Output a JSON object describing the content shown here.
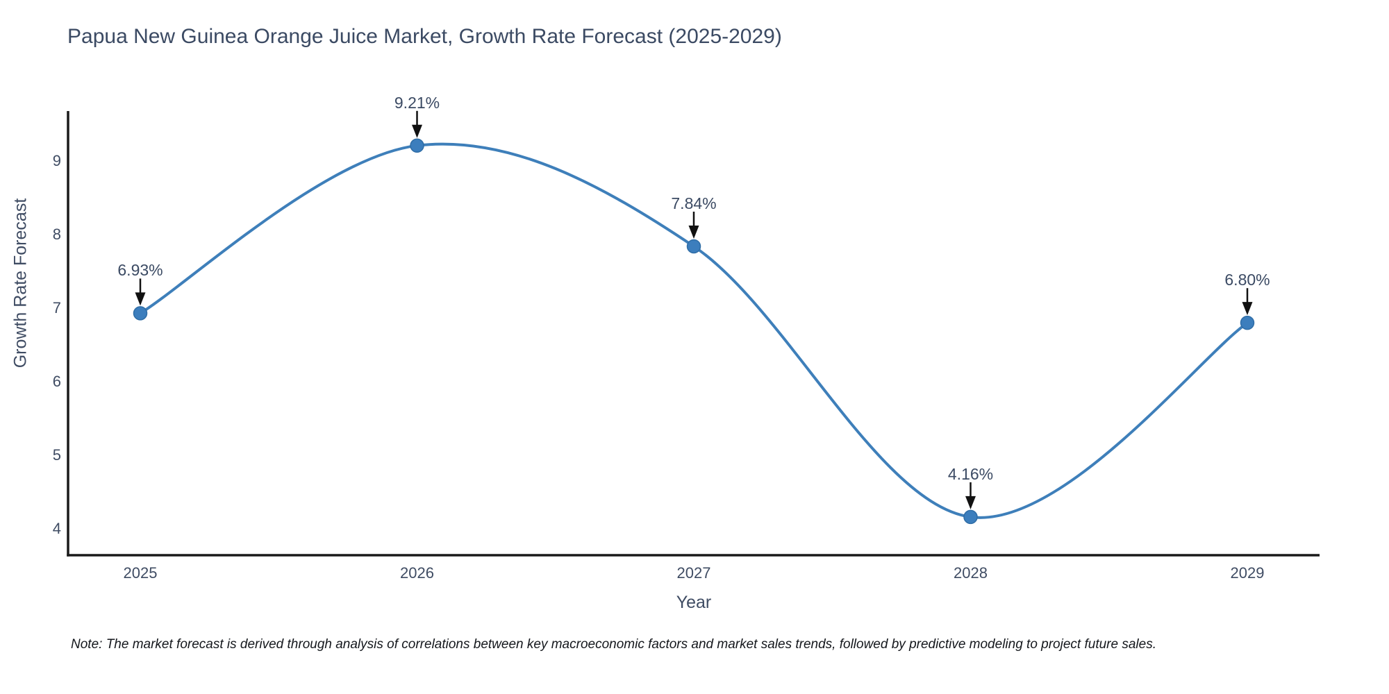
{
  "chart": {
    "title": "Papua New Guinea Orange Juice Market, Growth Rate Forecast (2025-2029)",
    "xlabel": "Year",
    "ylabel": "Growth Rate Forecast",
    "note": "Note: The market forecast is derived through analysis of correlations between key macroeconomic factors and market sales trends, followed by predictive modeling to project future sales."
  },
  "chart_data": {
    "type": "line",
    "title": "Papua New Guinea Orange Juice Market, Growth Rate Forecast (2025-2029)",
    "xlabel": "Year",
    "ylabel": "Growth Rate Forecast",
    "categories": [
      "2025",
      "2026",
      "2027",
      "2028",
      "2029"
    ],
    "values": [
      6.93,
      9.21,
      7.84,
      4.16,
      6.8
    ],
    "point_labels": [
      "6.93%",
      "9.21%",
      "7.84%",
      "4.16%",
      "6.80%"
    ],
    "yticks": [
      4,
      5,
      6,
      7,
      8,
      9
    ],
    "ylim": [
      3.64,
      9.68
    ],
    "grid": false,
    "legend": false,
    "curve_style": "smooth-spline",
    "colors": {
      "line": "#3e7fba",
      "marker_fill": "#3c7ebd",
      "marker_edge": "#2f6da6",
      "annotation_arrow": "#111111",
      "axis_spine": "#1a1a1a",
      "title_text": "#3b4a63",
      "tick_text": "#3f4c63"
    }
  }
}
